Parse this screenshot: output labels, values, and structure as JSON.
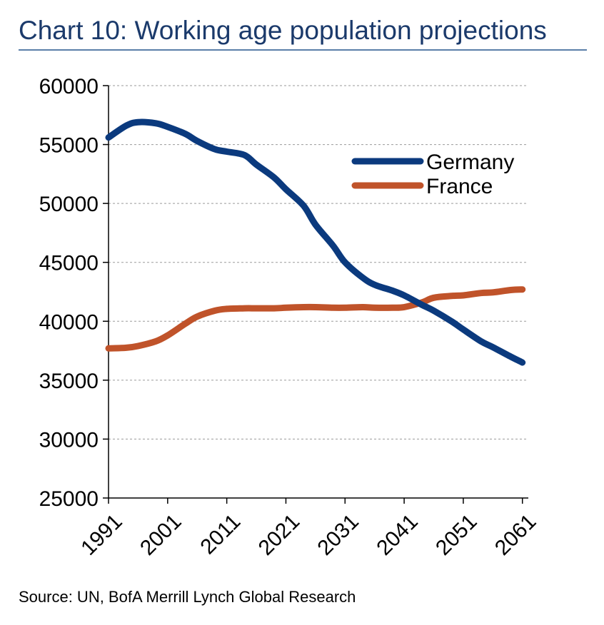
{
  "title": "Chart 10:  Working age population projections",
  "source": "Source: UN, BofA Merrill Lynch Global Research",
  "colors": {
    "title": "#1b3a6b",
    "germany": "#0b3a7e",
    "france": "#c0532a",
    "grid": "#9a9a9a"
  },
  "chart_data": {
    "type": "line",
    "title": "Chart 10:  Working age population projections",
    "xlabel": "",
    "ylabel": "",
    "xlim": [
      1991,
      2062
    ],
    "ylim": [
      25000,
      60000
    ],
    "yticks": [
      25000,
      30000,
      35000,
      40000,
      45000,
      50000,
      55000,
      60000
    ],
    "xticks": [
      1991,
      2001,
      2011,
      2021,
      2031,
      2041,
      2051,
      2061
    ],
    "grid": "horizontal dashed",
    "legend_position": "top-right",
    "series": [
      {
        "name": "Germany",
        "color": "#0b3a7e",
        "x": [
          1991,
          1994,
          1996,
          1999,
          2001,
          2004,
          2006,
          2009,
          2011,
          2014,
          2016,
          2019,
          2021,
          2024,
          2026,
          2029,
          2031,
          2034,
          2036,
          2039,
          2041,
          2044,
          2046,
          2049,
          2051,
          2054,
          2056,
          2059,
          2061
        ],
        "y": [
          55600,
          56600,
          56900,
          56800,
          56500,
          55900,
          55300,
          54600,
          54400,
          54100,
          53300,
          52200,
          51200,
          49800,
          48200,
          46400,
          45000,
          43700,
          43100,
          42600,
          42200,
          41400,
          40900,
          40000,
          39300,
          38300,
          37800,
          37000,
          36500
        ]
      },
      {
        "name": "France",
        "color": "#c0532a",
        "x": [
          1991,
          1994,
          1996,
          1999,
          2001,
          2004,
          2006,
          2009,
          2011,
          2014,
          2016,
          2019,
          2021,
          2024,
          2026,
          2029,
          2031,
          2034,
          2036,
          2039,
          2041,
          2044,
          2046,
          2049,
          2051,
          2054,
          2056,
          2059,
          2061
        ],
        "y": [
          37700,
          37750,
          37900,
          38300,
          38800,
          39800,
          40400,
          40900,
          41050,
          41100,
          41100,
          41100,
          41150,
          41200,
          41200,
          41150,
          41150,
          41200,
          41150,
          41150,
          41200,
          41600,
          42000,
          42150,
          42200,
          42400,
          42450,
          42650,
          42700
        ]
      }
    ]
  }
}
